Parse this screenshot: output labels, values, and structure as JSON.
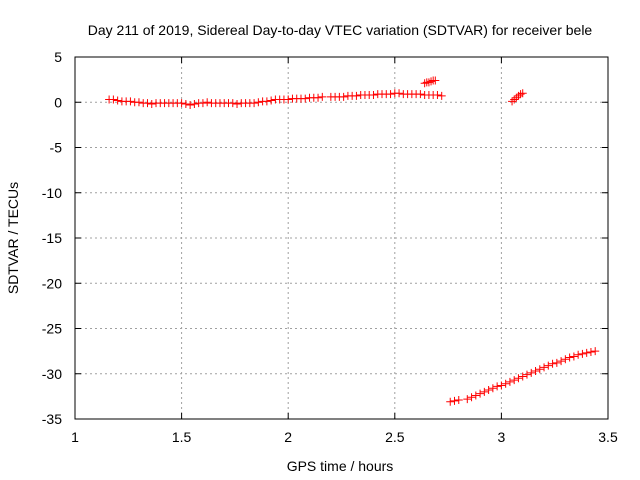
{
  "chart_data": {
    "type": "scatter",
    "title": "Day 211 of 2019, Sidereal Day-to-day VTEC variation (SDTVAR) for receiver bele",
    "xlabel": "GPS time / hours",
    "ylabel": "SDTVAR / TECUs",
    "xlim": [
      1,
      3.5
    ],
    "ylim": [
      -35,
      5
    ],
    "xticks": [
      1,
      1.5,
      2,
      2.5,
      3,
      3.5
    ],
    "xtick_labels": [
      "1",
      "1.5",
      "2",
      "2.5",
      "3",
      "3.5"
    ],
    "yticks": [
      5,
      0,
      -5,
      -10,
      -15,
      -20,
      -25,
      -30,
      -35
    ],
    "ytick_labels": [
      "5",
      "0",
      "-5",
      "-10",
      "-15",
      "-20",
      "-25",
      "-30",
      "-35"
    ],
    "grid": true,
    "marker": "+",
    "marker_color": "#ff0000",
    "grid_color": "#a0a0a0",
    "series": [
      {
        "name": "segment-1",
        "x": [
          1.16,
          1.18,
          1.2,
          1.22,
          1.24,
          1.26,
          1.28,
          1.3,
          1.32,
          1.34,
          1.36,
          1.38,
          1.4,
          1.42,
          1.44,
          1.46,
          1.48,
          1.5,
          1.52,
          1.54,
          1.56,
          1.58,
          1.6,
          1.62,
          1.64,
          1.66,
          1.68,
          1.7,
          1.72,
          1.74,
          1.76,
          1.78,
          1.8,
          1.82,
          1.84,
          1.86,
          1.88,
          1.9,
          1.92,
          1.94,
          1.96,
          1.98,
          2.0,
          2.02,
          2.04,
          2.06,
          2.08,
          2.1,
          2.12,
          2.14,
          2.16,
          2.2,
          2.22,
          2.24,
          2.26,
          2.28,
          2.3,
          2.32,
          2.34,
          2.36,
          2.38,
          2.4,
          2.42,
          2.44,
          2.46,
          2.48,
          2.5,
          2.52,
          2.54,
          2.56,
          2.58,
          2.6,
          2.62,
          2.64,
          2.66,
          2.68,
          2.7,
          2.72
        ],
        "y": [
          0.3,
          0.3,
          0.2,
          0.1,
          0.1,
          0.1,
          0.0,
          0.0,
          -0.1,
          -0.1,
          -0.2,
          -0.1,
          -0.1,
          -0.1,
          -0.1,
          -0.1,
          -0.1,
          -0.1,
          -0.2,
          -0.3,
          -0.2,
          -0.1,
          -0.1,
          0.0,
          -0.1,
          -0.1,
          -0.1,
          -0.1,
          -0.1,
          -0.1,
          -0.2,
          -0.1,
          -0.1,
          -0.1,
          -0.1,
          0.0,
          0.1,
          0.1,
          0.2,
          0.3,
          0.3,
          0.3,
          0.3,
          0.4,
          0.4,
          0.4,
          0.4,
          0.5,
          0.5,
          0.5,
          0.6,
          0.6,
          0.6,
          0.6,
          0.6,
          0.7,
          0.7,
          0.7,
          0.8,
          0.8,
          0.8,
          0.8,
          0.9,
          0.9,
          0.9,
          0.9,
          1.0,
          1.0,
          0.9,
          0.9,
          0.9,
          0.9,
          0.9,
          0.8,
          0.8,
          0.8,
          0.8,
          0.7
        ]
      },
      {
        "name": "segment-2",
        "x": [
          2.64,
          2.65,
          2.66,
          2.67,
          2.68,
          2.69
        ],
        "y": [
          2.1,
          2.2,
          2.2,
          2.3,
          2.4,
          2.4
        ]
      },
      {
        "name": "segment-3",
        "x": [
          3.05,
          3.06,
          3.07,
          3.08,
          3.09,
          3.1
        ],
        "y": [
          0.1,
          0.3,
          0.5,
          0.7,
          0.9,
          1.0
        ]
      },
      {
        "name": "segment-4",
        "x": [
          2.76,
          2.78,
          2.8,
          2.84,
          2.86,
          2.88,
          2.9,
          2.92,
          2.94,
          2.96,
          2.98,
          3.0,
          3.02,
          3.04,
          3.06,
          3.08,
          3.1,
          3.12,
          3.14,
          3.16,
          3.18,
          3.2,
          3.22,
          3.24,
          3.26,
          3.28,
          3.3,
          3.32,
          3.34,
          3.36,
          3.38,
          3.4,
          3.42,
          3.44
        ],
        "y": [
          -33.1,
          -33.0,
          -32.9,
          -32.8,
          -32.6,
          -32.4,
          -32.2,
          -32.0,
          -31.8,
          -31.6,
          -31.4,
          -31.3,
          -31.1,
          -30.9,
          -30.7,
          -30.5,
          -30.3,
          -30.1,
          -29.9,
          -29.7,
          -29.5,
          -29.3,
          -29.1,
          -28.9,
          -28.8,
          -28.6,
          -28.4,
          -28.2,
          -28.1,
          -27.9,
          -27.8,
          -27.7,
          -27.6,
          -27.5
        ]
      }
    ]
  }
}
